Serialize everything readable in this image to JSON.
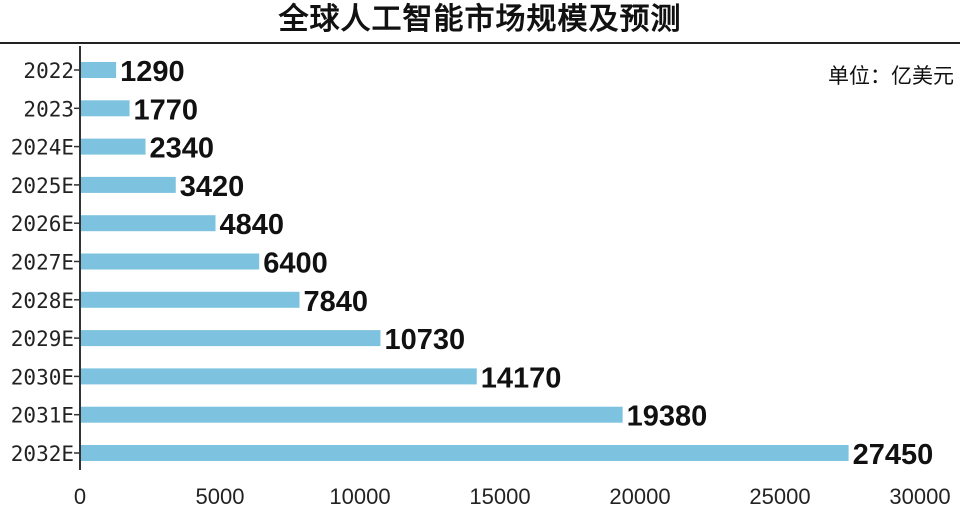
{
  "chart_data": {
    "type": "bar",
    "orientation": "horizontal",
    "title": "全球人工智能市场规模及预测",
    "unit_label": "单位：亿美元",
    "categories": [
      "2022",
      "2023",
      "2024E",
      "2025E",
      "2026E",
      "2027E",
      "2028E",
      "2029E",
      "2030E",
      "2031E",
      "2032E"
    ],
    "values": [
      1290,
      1770,
      2340,
      3420,
      4840,
      6400,
      7840,
      10730,
      14170,
      19380,
      27450
    ],
    "value_labels": [
      "1290",
      "1770",
      "2340",
      "3420",
      "4840",
      "6400",
      "7840",
      "10730",
      "14170",
      "19380",
      "27450"
    ],
    "xlim": [
      0,
      30000
    ],
    "xticks": [
      0,
      5000,
      10000,
      15000,
      20000,
      25000,
      30000
    ],
    "xtick_labels": [
      "0",
      "5000",
      "10000",
      "15000",
      "20000",
      "25000",
      "30000"
    ],
    "grid": false,
    "colors": {
      "bar": "#7dc3df",
      "axis": "#333333",
      "text": "#111111"
    }
  }
}
